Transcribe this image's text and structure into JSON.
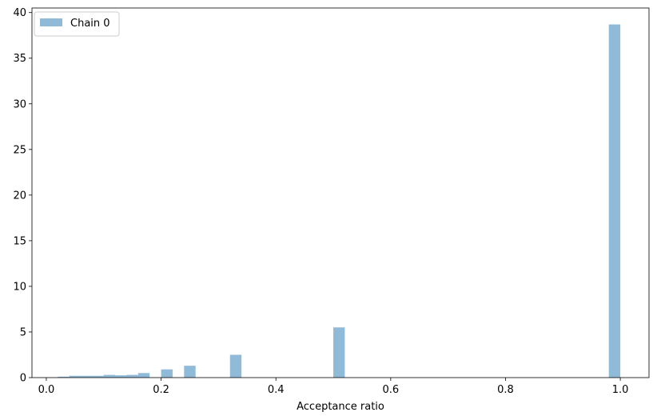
{
  "chart_data": {
    "type": "histogram",
    "xlabel": "Acceptance ratio",
    "ylabel": "",
    "title": "",
    "xlim": [
      -0.025,
      1.05
    ],
    "ylim": [
      0,
      40.5
    ],
    "xticks": [
      0.0,
      0.2,
      0.4,
      0.6,
      0.8,
      1.0
    ],
    "xtick_labels": [
      "0.0",
      "0.2",
      "0.4",
      "0.6",
      "0.8",
      "1.0"
    ],
    "yticks": [
      0,
      5,
      10,
      15,
      20,
      25,
      30,
      35,
      40
    ],
    "ytick_labels": [
      "0",
      "5",
      "10",
      "15",
      "20",
      "25",
      "30",
      "35",
      "40"
    ],
    "bin_width": 0.02,
    "legend_position": "upper-left",
    "grid": false,
    "series": [
      {
        "name": "Chain 0",
        "color": "#1f77b4",
        "opacity": 0.5,
        "bins": [
          {
            "x0": 0.02,
            "x1": 0.04,
            "height": 0.1
          },
          {
            "x0": 0.04,
            "x1": 0.06,
            "height": 0.2
          },
          {
            "x0": 0.06,
            "x1": 0.08,
            "height": 0.2
          },
          {
            "x0": 0.08,
            "x1": 0.1,
            "height": 0.2
          },
          {
            "x0": 0.1,
            "x1": 0.12,
            "height": 0.3
          },
          {
            "x0": 0.12,
            "x1": 0.14,
            "height": 0.25
          },
          {
            "x0": 0.14,
            "x1": 0.16,
            "height": 0.3
          },
          {
            "x0": 0.16,
            "x1": 0.18,
            "height": 0.5
          },
          {
            "x0": 0.2,
            "x1": 0.22,
            "height": 0.9
          },
          {
            "x0": 0.24,
            "x1": 0.26,
            "height": 1.3
          },
          {
            "x0": 0.32,
            "x1": 0.34,
            "height": 2.5
          },
          {
            "x0": 0.5,
            "x1": 0.52,
            "height": 5.5
          },
          {
            "x0": 0.98,
            "x1": 1.0,
            "height": 38.7
          }
        ]
      }
    ]
  }
}
